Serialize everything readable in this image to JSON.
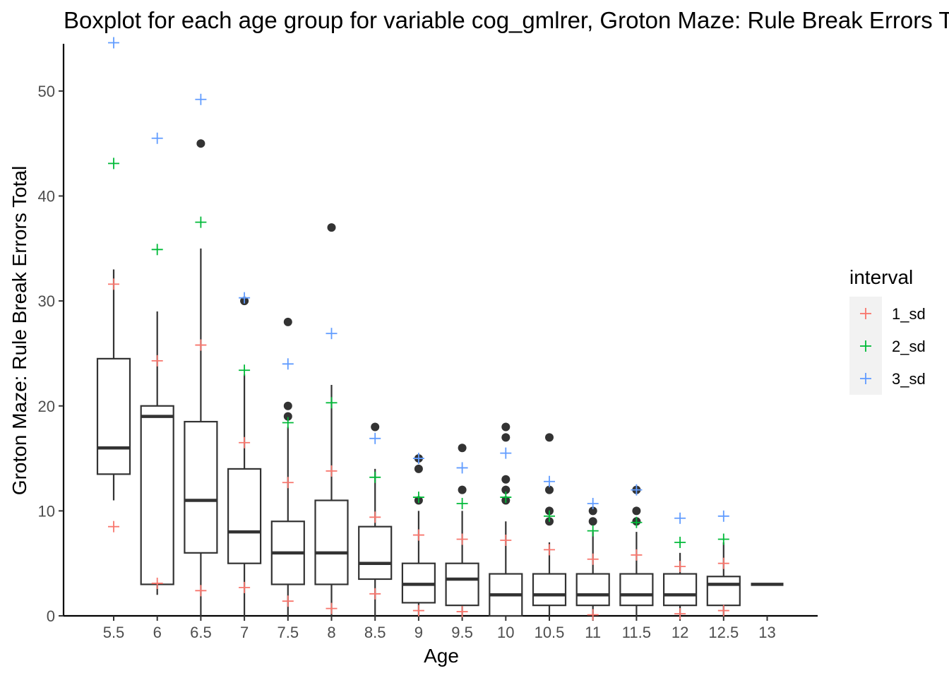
{
  "chart_data": {
    "type": "boxplot",
    "title": "Boxplot for each age group for variable cog_gmlrer, Groton Maze: Rule Break Errors Total",
    "xlabel": "Age",
    "ylabel": "Groton Maze: Rule Break Errors Total",
    "ylim": [
      0,
      54.5
    ],
    "yticks": [
      0,
      10,
      20,
      30,
      40,
      50
    ],
    "categories": [
      "5.5",
      "6",
      "6.5",
      "7",
      "7.5",
      "8",
      "8.5",
      "9",
      "9.5",
      "10",
      "10.5",
      "11",
      "11.5",
      "12",
      "12.5",
      "13"
    ],
    "grid": false,
    "legend_position": "right",
    "legend": {
      "title": "interval",
      "entries": [
        {
          "key": "1_sd",
          "label": "1_sd",
          "color": "#F8766D"
        },
        {
          "key": "2_sd",
          "label": "2_sd",
          "color": "#00BA38"
        },
        {
          "key": "3_sd",
          "label": "3_sd",
          "color": "#619CFF"
        }
      ]
    },
    "boxes": [
      {
        "x": "5.5",
        "whisker_low": 11,
        "q1": 13.5,
        "median": 16,
        "q3": 24.5,
        "whisker_high": 33,
        "outliers": []
      },
      {
        "x": "6",
        "whisker_low": 2,
        "q1": 3,
        "median": 19,
        "q3": 20,
        "whisker_high": 29,
        "outliers": []
      },
      {
        "x": "6.5",
        "whisker_low": 0,
        "q1": 6,
        "median": 11,
        "q3": 18.5,
        "whisker_high": 35,
        "outliers": [
          45
        ]
      },
      {
        "x": "7",
        "whisker_low": 0,
        "q1": 5,
        "median": 8,
        "q3": 14,
        "whisker_high": 23,
        "outliers": [
          30
        ]
      },
      {
        "x": "7.5",
        "whisker_low": 0,
        "q1": 3,
        "median": 6,
        "q3": 9,
        "whisker_high": 18,
        "outliers": [
          19,
          20,
          28
        ]
      },
      {
        "x": "8",
        "whisker_low": 0,
        "q1": 3,
        "median": 6,
        "q3": 11,
        "whisker_high": 22,
        "outliers": [
          37
        ]
      },
      {
        "x": "8.5",
        "whisker_low": 0,
        "q1": 3.5,
        "median": 5,
        "q3": 8.5,
        "whisker_high": 14,
        "outliers": [
          18
        ]
      },
      {
        "x": "9",
        "whisker_low": 0,
        "q1": 1.25,
        "median": 3,
        "q3": 5,
        "whisker_high": 10,
        "outliers": [
          11,
          14,
          15
        ]
      },
      {
        "x": "9.5",
        "whisker_low": 0,
        "q1": 1,
        "median": 3.5,
        "q3": 5,
        "whisker_high": 10,
        "outliers": [
          12,
          16
        ]
      },
      {
        "x": "10",
        "whisker_low": 0,
        "q1": 0,
        "median": 2,
        "q3": 4,
        "whisker_high": 9,
        "outliers": [
          11,
          12,
          13,
          17,
          18
        ]
      },
      {
        "x": "10.5",
        "whisker_low": 0,
        "q1": 1,
        "median": 2,
        "q3": 4,
        "whisker_high": 7,
        "outliers": [
          9,
          10,
          12,
          17
        ]
      },
      {
        "x": "11",
        "whisker_low": 0,
        "q1": 1,
        "median": 2,
        "q3": 4,
        "whisker_high": 8,
        "outliers": [
          9,
          10
        ]
      },
      {
        "x": "11.5",
        "whisker_low": 0,
        "q1": 1,
        "median": 2,
        "q3": 4,
        "whisker_high": 8,
        "outliers": [
          9,
          10,
          12
        ]
      },
      {
        "x": "12",
        "whisker_low": 0,
        "q1": 1,
        "median": 2,
        "q3": 4,
        "whisker_high": 6,
        "outliers": []
      },
      {
        "x": "12.5",
        "whisker_low": 0,
        "q1": 1,
        "median": 3,
        "q3": 3.75,
        "whisker_high": 7,
        "outliers": []
      },
      {
        "x": "13",
        "whisker_low": 3,
        "q1": 3,
        "median": 3,
        "q3": 3,
        "whisker_high": 3,
        "outliers": []
      }
    ],
    "intervals": [
      {
        "x": "5.5",
        "1_sd": [
          8.5,
          31.6
        ],
        "2_sd": [
          43.1
        ],
        "3_sd": [
          54.6
        ]
      },
      {
        "x": "6",
        "1_sd": [
          3.1,
          24.3
        ],
        "2_sd": [
          34.9
        ],
        "3_sd": [
          45.5
        ]
      },
      {
        "x": "6.5",
        "1_sd": [
          2.4,
          25.8
        ],
        "2_sd": [
          37.5
        ],
        "3_sd": [
          49.2
        ]
      },
      {
        "x": "7",
        "1_sd": [
          2.7,
          16.5
        ],
        "2_sd": [
          23.4
        ],
        "3_sd": [
          30.3
        ]
      },
      {
        "x": "7.5",
        "1_sd": [
          1.4,
          12.7
        ],
        "2_sd": [
          18.4
        ],
        "3_sd": [
          24.0
        ]
      },
      {
        "x": "8",
        "1_sd": [
          0.7,
          13.8
        ],
        "2_sd": [
          20.3
        ],
        "3_sd": [
          26.9
        ]
      },
      {
        "x": "8.5",
        "1_sd": [
          2.1,
          9.4
        ],
        "2_sd": [
          13.2
        ],
        "3_sd": [
          16.9
        ]
      },
      {
        "x": "9",
        "1_sd": [
          0.5,
          7.7
        ],
        "2_sd": [
          11.3
        ],
        "3_sd": [
          15.0
        ]
      },
      {
        "x": "9.5",
        "1_sd": [
          0.4,
          7.3
        ],
        "2_sd": [
          10.7
        ],
        "3_sd": [
          14.1
        ]
      },
      {
        "x": "10",
        "1_sd": [
          7.2
        ],
        "2_sd": [
          11.3
        ],
        "3_sd": [
          15.5
        ]
      },
      {
        "x": "10.5",
        "1_sd": [
          6.3
        ],
        "2_sd": [
          9.5
        ],
        "3_sd": [
          12.8
        ]
      },
      {
        "x": "11",
        "1_sd": [
          0.1,
          5.4
        ],
        "2_sd": [
          8.1
        ],
        "3_sd": [
          10.7
        ]
      },
      {
        "x": "11.5",
        "1_sd": [
          5.8
        ],
        "2_sd": [
          8.9
        ],
        "3_sd": [
          12.0
        ]
      },
      {
        "x": "12",
        "1_sd": [
          0.2,
          4.7
        ],
        "2_sd": [
          7.0
        ],
        "3_sd": [
          9.3
        ]
      },
      {
        "x": "12.5",
        "1_sd": [
          0.5,
          5.0
        ],
        "2_sd": [
          7.3
        ],
        "3_sd": [
          9.5
        ]
      }
    ]
  }
}
